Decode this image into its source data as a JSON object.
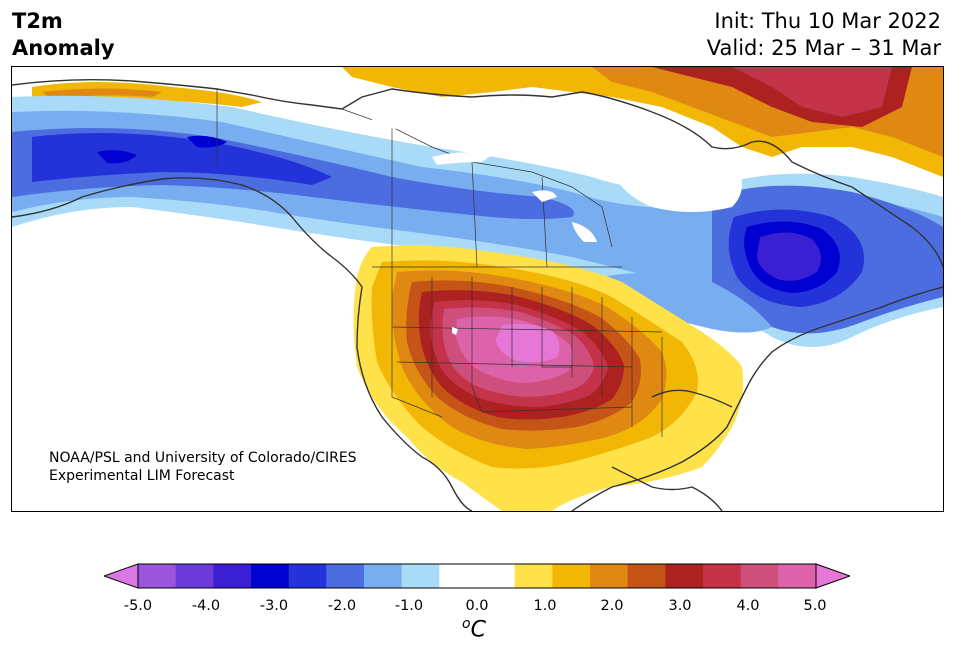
{
  "title": {
    "variable_line1": "T2m",
    "variable_line2": "Anomaly",
    "init": "Init: Thu 10 Mar 2022",
    "valid": "Valid: 25 Mar – 31 Mar"
  },
  "credit": {
    "line1": "NOAA/PSL and University of Colorado/CIRES",
    "line2": "Experimental LIM Forecast"
  },
  "colorbar": {
    "colors": [
      "#dc78e6",
      "#9b55dc",
      "#6a3bd8",
      "#3b1fd2",
      "#0000d0",
      "#2332d9",
      "#4b6de0",
      "#78aeef",
      "#a9dbf9",
      "#ffffff",
      "#ffffff",
      "#ffe24a",
      "#f2b705",
      "#df8912",
      "#c45517",
      "#ad2121",
      "#c4334a",
      "#cf4f7c",
      "#dc63aa",
      "#e677d6"
    ],
    "tick_labels": [
      "-5.0",
      "-4.0",
      "-3.0",
      "-2.0",
      "-1.0",
      "0.0",
      "1.0",
      "2.0",
      "3.0",
      "4.0",
      "5.0"
    ],
    "unit_base": "C",
    "unit_super": "o"
  }
}
